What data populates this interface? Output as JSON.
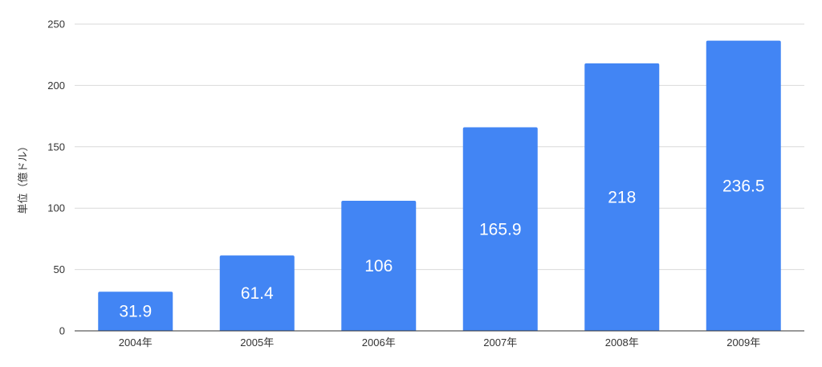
{
  "chart_data": {
    "type": "bar",
    "categories": [
      "2004年",
      "2005年",
      "2006年",
      "2007年",
      "2008年",
      "2009年"
    ],
    "values": [
      31.9,
      61.4,
      106,
      165.9,
      218,
      236.5
    ],
    "data_labels": [
      "31.9",
      "61.4",
      "106",
      "165.9",
      "218",
      "236.5"
    ],
    "title": "",
    "xlabel": "",
    "ylabel": "単位（億ドル）",
    "ylim": [
      0,
      250
    ],
    "yticks": [
      0,
      50,
      100,
      150,
      200,
      250
    ],
    "grid": true,
    "legend": "none",
    "bar_color": "#4285f4"
  }
}
